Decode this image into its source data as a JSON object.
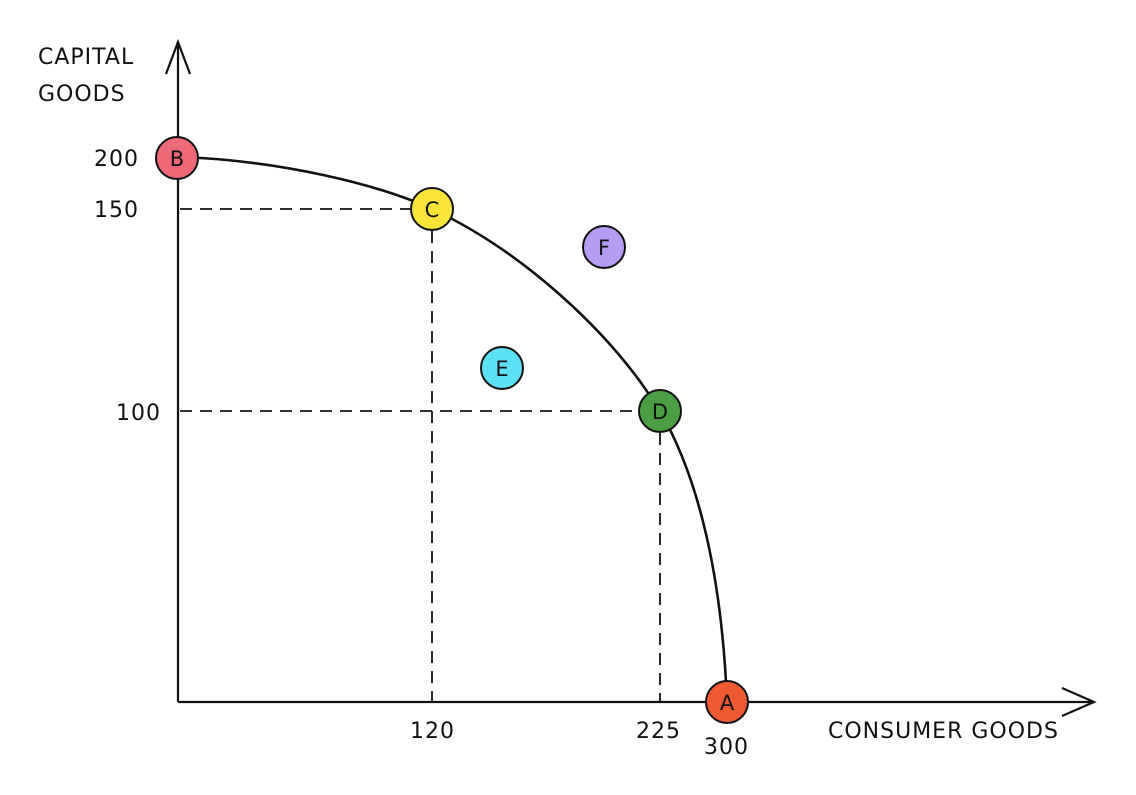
{
  "diagram": {
    "y_axis_label_line1": "CAPITAL",
    "y_axis_label_line2": "GOODS",
    "x_axis_label": "CONSUMER GOODS",
    "y_ticks": [
      "200",
      "150",
      "100"
    ],
    "x_ticks": [
      "120",
      "225",
      "300"
    ],
    "points": [
      {
        "label": "A",
        "consumer_goods": 300,
        "capital_goods": 0,
        "color": "#f05a32"
      },
      {
        "label": "B",
        "consumer_goods": 0,
        "capital_goods": 200,
        "color": "#ee6a78"
      },
      {
        "label": "C",
        "consumer_goods": 120,
        "capital_goods": 150,
        "color": "#fbe53b"
      },
      {
        "label": "D",
        "consumer_goods": 225,
        "capital_goods": 100,
        "color": "#4a9e44"
      },
      {
        "label": "E",
        "color": "#5ce1f5"
      },
      {
        "label": "F",
        "color": "#b59cf5"
      }
    ],
    "colors": {
      "line": "#111111",
      "background": "#ffffff"
    }
  }
}
